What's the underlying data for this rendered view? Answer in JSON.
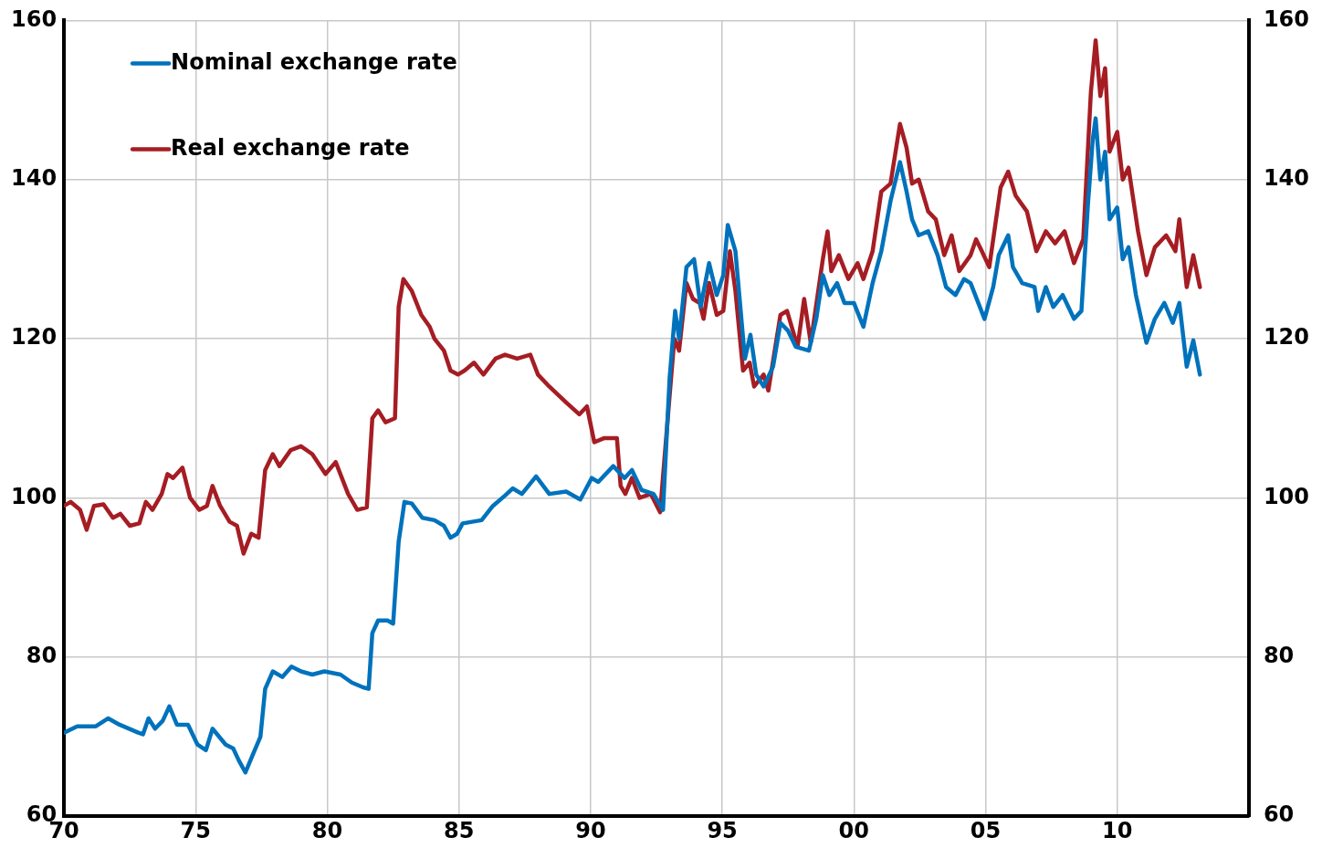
{
  "chart_data": {
    "type": "line",
    "legend": "top left",
    "grid": true,
    "marker": "none",
    "line_style": "solid",
    "xlim": [
      1970,
      2015
    ],
    "xticks": [
      {
        "value": 1970,
        "label": "70"
      },
      {
        "value": 1975,
        "label": "75"
      },
      {
        "value": 1980,
        "label": "80"
      },
      {
        "value": 1985,
        "label": "85"
      },
      {
        "value": 1990,
        "label": "90"
      },
      {
        "value": 1995,
        "label": "95"
      },
      {
        "value": 2000,
        "label": "00"
      },
      {
        "value": 2005,
        "label": "05"
      },
      {
        "value": 2010,
        "label": "10"
      }
    ],
    "ylim": [
      60,
      160
    ],
    "yticks": [
      60,
      80,
      100,
      120,
      140,
      160
    ],
    "y2lim": [
      60,
      160
    ],
    "y2ticks": [
      60,
      80,
      100,
      120,
      140,
      160
    ],
    "series": [
      {
        "name": "Nominal exchange rate",
        "color": "#0072bc",
        "x": [
          1970.0,
          1970.5,
          1971.21,
          1971.68,
          1972.11,
          1972.82,
          1973.0,
          1973.21,
          1973.46,
          1973.75,
          1974.0,
          1974.29,
          1974.71,
          1975.07,
          1975.39,
          1975.64,
          1976.14,
          1976.43,
          1976.64,
          1976.89,
          1977.14,
          1977.46,
          1977.64,
          1977.93,
          1978.29,
          1978.64,
          1979.0,
          1979.43,
          1979.89,
          1980.5,
          1980.93,
          1981.36,
          1981.57,
          1981.71,
          1981.93,
          1982.29,
          1982.5,
          1982.71,
          1982.93,
          1983.21,
          1983.61,
          1984.07,
          1984.43,
          1984.68,
          1984.93,
          1985.14,
          1985.5,
          1985.86,
          1986.29,
          1986.75,
          1987.04,
          1987.39,
          1987.93,
          1988.43,
          1989.07,
          1989.61,
          1990.04,
          1990.29,
          1990.86,
          1991.29,
          1991.57,
          1991.93,
          1992.39,
          1992.75,
          1993.0,
          1993.21,
          1993.36,
          1993.64,
          1993.93,
          1994.18,
          1994.5,
          1994.79,
          1995.04,
          1995.21,
          1995.5,
          1995.86,
          1996.07,
          1996.29,
          1996.57,
          1996.93,
          1997.21,
          1997.5,
          1997.79,
          1998.29,
          1998.57,
          1998.82,
          1999.07,
          1999.36,
          1999.64,
          2000.0,
          2000.36,
          2000.71,
          2001.04,
          2001.39,
          2001.75,
          2002.0,
          2002.21,
          2002.46,
          2002.82,
          2003.18,
          2003.5,
          2003.86,
          2004.18,
          2004.43,
          2004.96,
          2005.29,
          2005.5,
          2005.86,
          2006.04,
          2006.39,
          2006.86,
          2007.0,
          2007.29,
          2007.57,
          2007.93,
          2008.36,
          2008.64,
          2008.89,
          2009.07,
          2009.18,
          2009.36,
          2009.54,
          2009.71,
          2010.0,
          2010.21,
          2010.43,
          2010.71,
          2011.11,
          2011.43,
          2011.79,
          2012.11,
          2012.36,
          2012.64,
          2012.89,
          2013.14
        ],
        "values": [
          70.5,
          71.3,
          71.3,
          72.3,
          71.5,
          70.5,
          70.3,
          72.3,
          71,
          72,
          73.8,
          71.5,
          71.5,
          69,
          68.3,
          71,
          69,
          68.5,
          67,
          65.5,
          67.5,
          70,
          76,
          78.2,
          77.5,
          78.8,
          78.2,
          77.8,
          78.2,
          77.8,
          76.8,
          76.2,
          76,
          83,
          84.6,
          84.6,
          84.2,
          94.5,
          99.5,
          99.3,
          97.5,
          97.2,
          96.5,
          95,
          95.5,
          96.8,
          97,
          97.2,
          99,
          100.3,
          101.2,
          100.5,
          102.7,
          100.5,
          100.8,
          99.8,
          102.5,
          102,
          104,
          102.5,
          103.5,
          101,
          100.5,
          98.5,
          115,
          123.5,
          120,
          129,
          130,
          124,
          129.5,
          125.5,
          128,
          134.3,
          131,
          117.5,
          120.5,
          115.5,
          114,
          116.5,
          122,
          121,
          119,
          118.5,
          122.5,
          128,
          125.5,
          127,
          124.5,
          124.5,
          121.5,
          127,
          131,
          137.3,
          142.2,
          138.5,
          135,
          133,
          133.5,
          130.5,
          126.5,
          125.5,
          127.5,
          127,
          122.5,
          126.5,
          130.5,
          133,
          129,
          127,
          126.5,
          123.5,
          126.5,
          124,
          125.5,
          122.5,
          123.5,
          137,
          145,
          147.7,
          140,
          143.5,
          135,
          136.5,
          130,
          131.5,
          125.5,
          119.5,
          122.5,
          124.5,
          122,
          124.5,
          116.5,
          119.8,
          115.5
        ]
      },
      {
        "name": "Real exchange rate",
        "color": "#a51d23",
        "x": [
          1970.0,
          1970.25,
          1970.61,
          1970.86,
          1971.14,
          1971.5,
          1971.86,
          1972.14,
          1972.5,
          1972.86,
          1973.11,
          1973.36,
          1973.71,
          1973.93,
          1974.14,
          1974.5,
          1974.79,
          1975.14,
          1975.43,
          1975.64,
          1975.93,
          1976.29,
          1976.57,
          1976.82,
          1977.11,
          1977.39,
          1977.64,
          1977.93,
          1978.18,
          1978.61,
          1979.0,
          1979.43,
          1979.93,
          1980.32,
          1980.79,
          1981.14,
          1981.5,
          1981.71,
          1981.93,
          1982.21,
          1982.57,
          1982.71,
          1982.89,
          1983.21,
          1983.57,
          1983.89,
          1984.07,
          1984.43,
          1984.68,
          1984.96,
          1985.21,
          1985.57,
          1985.93,
          1986.39,
          1986.75,
          1987.21,
          1987.71,
          1988.0,
          1988.43,
          1989.07,
          1989.57,
          1989.86,
          1990.14,
          1990.5,
          1991.0,
          1991.14,
          1991.32,
          1991.57,
          1991.86,
          1992.29,
          1992.64,
          1992.93,
          1993.18,
          1993.36,
          1993.64,
          1993.89,
          1994.14,
          1994.29,
          1994.5,
          1994.79,
          1995.04,
          1995.29,
          1995.5,
          1995.79,
          1996.04,
          1996.21,
          1996.57,
          1996.75,
          1997.21,
          1997.46,
          1997.86,
          1998.11,
          1998.36,
          1998.82,
          1999.0,
          1999.14,
          1999.43,
          1999.79,
          2000.14,
          2000.36,
          2000.71,
          2001.04,
          2001.39,
          2001.75,
          2002.0,
          2002.21,
          2002.46,
          2002.82,
          2003.11,
          2003.43,
          2003.71,
          2004.0,
          2004.43,
          2004.64,
          2004.86,
          2005.14,
          2005.57,
          2005.86,
          2006.14,
          2006.57,
          2006.93,
          2007.29,
          2007.64,
          2008.0,
          2008.36,
          2008.71,
          2009.0,
          2009.18,
          2009.36,
          2009.54,
          2009.71,
          2010.0,
          2010.21,
          2010.43,
          2010.79,
          2011.11,
          2011.43,
          2011.86,
          2012.21,
          2012.36,
          2012.64,
          2012.89,
          2013.14
        ],
        "values": [
          99,
          99.5,
          98.5,
          96,
          99,
          99.2,
          97.5,
          98,
          96.5,
          96.8,
          99.5,
          98.5,
          100.5,
          103,
          102.5,
          103.8,
          100,
          98.5,
          99,
          101.5,
          99,
          97,
          96.5,
          93,
          95.5,
          95,
          103.5,
          105.5,
          104,
          106,
          106.5,
          105.5,
          103,
          104.5,
          100.5,
          98.5,
          98.8,
          110,
          111,
          109.5,
          110,
          124,
          127.5,
          126,
          123,
          121.5,
          120,
          118.5,
          116,
          115.5,
          116,
          117,
          115.5,
          117.5,
          118,
          117.5,
          118,
          115.5,
          114,
          112,
          110.5,
          111.5,
          107,
          107.5,
          107.5,
          101.5,
          100.5,
          102.5,
          100,
          100.5,
          98.2,
          110,
          120,
          118.5,
          127,
          125,
          124.5,
          122.5,
          127,
          123,
          123.5,
          131,
          126,
          116,
          117,
          114,
          115.5,
          113.5,
          123,
          123.5,
          119,
          125,
          119.5,
          130,
          133.5,
          128.5,
          130.5,
          127.5,
          129.5,
          127.5,
          131,
          138.5,
          139.5,
          147,
          144,
          139.5,
          140,
          136,
          135,
          130.5,
          133,
          128.5,
          130.5,
          132.5,
          131,
          129,
          139,
          141,
          138,
          136,
          131,
          133.5,
          132,
          133.5,
          129.5,
          132.5,
          151,
          157.5,
          150.5,
          154,
          143.5,
          146,
          140,
          141.5,
          133.5,
          128,
          131.5,
          133,
          131,
          135,
          126.5,
          130.5,
          126.5
        ]
      }
    ]
  }
}
